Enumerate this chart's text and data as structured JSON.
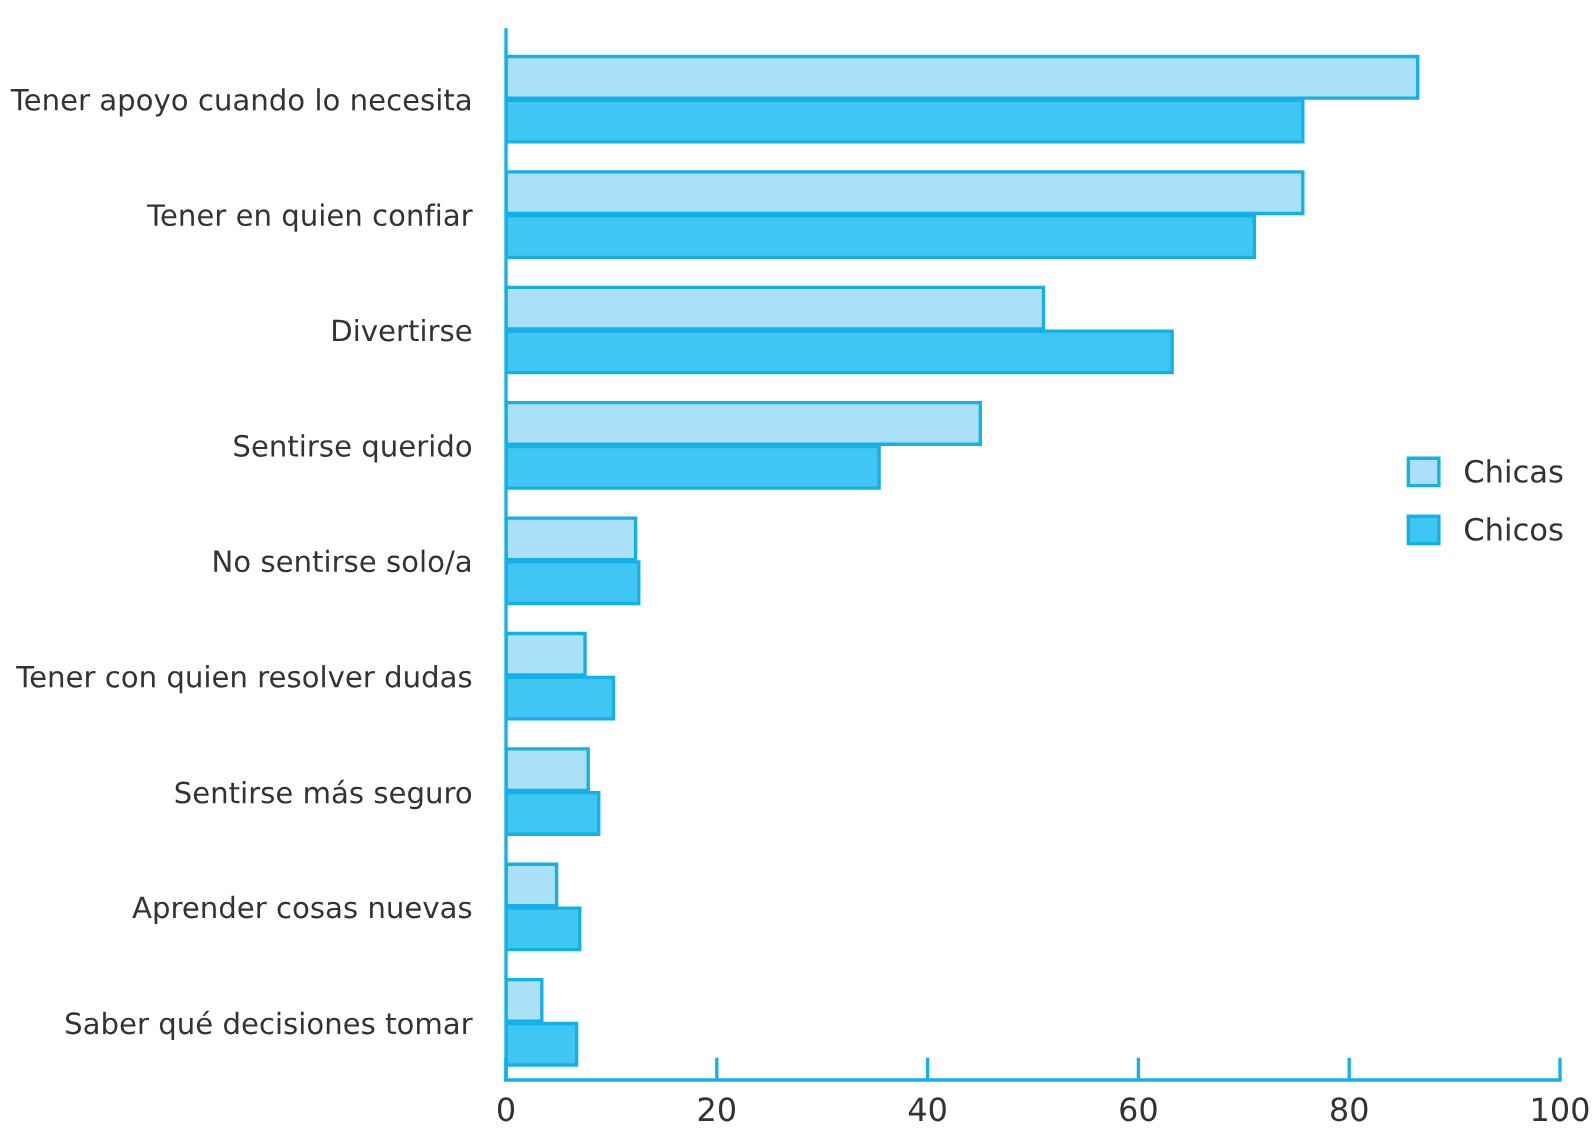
{
  "chart_data": {
    "type": "bar",
    "orientation": "horizontal",
    "categories": [
      "Tener apoyo cuando lo necesita",
      "Tener en quien confiar",
      "Divertirse",
      "Sentirse querido",
      "No sentirse solo/a",
      "Tener con quien resolver dudas",
      "Sentirse más seguro",
      "Aprender cosas nuevas",
      "Saber qué decisiones tomar"
    ],
    "series": [
      {
        "name": "Chicas",
        "color": "#aae0fa",
        "values": [
          86.5,
          75.6,
          51.0,
          45.0,
          12.3,
          7.5,
          7.8,
          4.8,
          3.4
        ]
      },
      {
        "name": "Chicos",
        "color": "#40c6f2",
        "values": [
          75.6,
          71.0,
          63.2,
          35.4,
          12.6,
          10.2,
          8.8,
          7.0,
          6.7
        ]
      }
    ],
    "xlim": [
      0,
      100
    ],
    "xticks": [
      0,
      20,
      40,
      60,
      80,
      100
    ],
    "grid": false,
    "legend": "right"
  }
}
